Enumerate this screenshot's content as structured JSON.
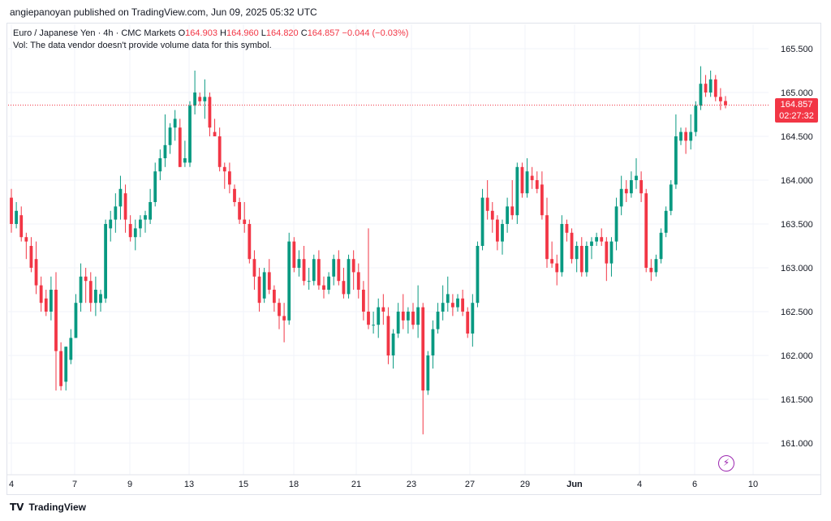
{
  "header": {
    "publisher_text": "angiepanoyan published on TradingView.com, Jun 09, 2025 05:32 UTC"
  },
  "legend": {
    "symbol": "Euro / Japanese Yen · 4h · CMC Markets",
    "o_label": "O",
    "o_val": "164.903",
    "h_label": "H",
    "h_val": "164.960",
    "l_label": "L",
    "l_val": "164.820",
    "c_label": "C",
    "c_val": "164.857",
    "change": "−0.044 (−0.03%)",
    "vol_note": "Vol: The data vendor doesn't provide volume data for this symbol."
  },
  "price_tag": {
    "price": "164.857",
    "countdown": "02:27:32"
  },
  "footer": {
    "brand": "TradingView"
  },
  "colors": {
    "up": "#089981",
    "down": "#f23645",
    "grid": "#f0f3fa",
    "last_price_line": "#f23645"
  },
  "chart_data": {
    "type": "candlestick",
    "ylim": [
      160.75,
      165.75
    ],
    "y_ticks": [
      "165.500",
      "165.000",
      "164.500",
      "164.000",
      "163.500",
      "163.000",
      "162.500",
      "162.000",
      "161.500",
      "161.000"
    ],
    "x_ticks": [
      "4",
      "7",
      "9",
      "13",
      "15",
      "18",
      "21",
      "23",
      "27",
      "29",
      "Jun",
      "4",
      "6",
      "10"
    ],
    "last_price": 164.857,
    "candles": [
      [
        163.8,
        163.9,
        163.4,
        163.5
      ],
      [
        163.5,
        163.75,
        163.45,
        163.65
      ],
      [
        163.6,
        163.7,
        163.3,
        163.35
      ],
      [
        163.35,
        163.4,
        163.1,
        163.3
      ],
      [
        163.25,
        163.35,
        162.95,
        163.0
      ],
      [
        163.1,
        163.3,
        162.7,
        162.8
      ],
      [
        162.8,
        162.9,
        162.5,
        162.6
      ],
      [
        162.65,
        162.75,
        162.45,
        162.5
      ],
      [
        162.5,
        162.9,
        162.4,
        162.75
      ],
      [
        162.75,
        162.95,
        161.6,
        162.05
      ],
      [
        162.05,
        162.15,
        161.6,
        161.65
      ],
      [
        161.7,
        162.1,
        161.6,
        162.1
      ],
      [
        161.95,
        162.3,
        161.9,
        162.2
      ],
      [
        162.2,
        162.7,
        162.2,
        162.6
      ],
      [
        162.6,
        163.05,
        162.5,
        162.9
      ],
      [
        162.9,
        163.0,
        162.6,
        162.85
      ],
      [
        162.85,
        162.95,
        162.5,
        162.6
      ],
      [
        162.6,
        162.9,
        162.45,
        162.75
      ],
      [
        162.6,
        162.75,
        162.5,
        162.7
      ],
      [
        162.65,
        163.55,
        162.6,
        163.5
      ],
      [
        163.45,
        163.65,
        163.3,
        163.55
      ],
      [
        163.55,
        163.85,
        163.4,
        163.7
      ],
      [
        163.7,
        164.05,
        163.55,
        163.9
      ],
      [
        163.85,
        163.95,
        163.4,
        163.55
      ],
      [
        163.5,
        163.6,
        163.3,
        163.35
      ],
      [
        163.35,
        163.55,
        163.2,
        163.45
      ],
      [
        163.45,
        163.6,
        163.35,
        163.55
      ],
      [
        163.55,
        163.65,
        163.4,
        163.6
      ],
      [
        163.55,
        163.9,
        163.5,
        163.75
      ],
      [
        163.75,
        164.2,
        163.7,
        164.1
      ],
      [
        164.1,
        164.35,
        164.0,
        164.25
      ],
      [
        164.25,
        164.75,
        164.15,
        164.4
      ],
      [
        164.4,
        164.65,
        164.3,
        164.6
      ],
      [
        164.6,
        164.8,
        164.45,
        164.7
      ],
      [
        164.6,
        164.7,
        164.15,
        164.15
      ],
      [
        164.2,
        164.45,
        164.15,
        164.25
      ],
      [
        164.2,
        164.9,
        164.15,
        164.85
      ],
      [
        164.85,
        165.25,
        164.75,
        165.0
      ],
      [
        164.95,
        165.0,
        164.85,
        164.9
      ],
      [
        164.9,
        165.15,
        164.7,
        164.95
      ],
      [
        164.95,
        165.0,
        164.5,
        164.6
      ],
      [
        164.55,
        164.7,
        164.5,
        164.5
      ],
      [
        164.5,
        164.6,
        164.1,
        164.15
      ],
      [
        164.15,
        164.2,
        163.9,
        164.1
      ],
      [
        164.1,
        164.2,
        163.85,
        163.95
      ],
      [
        163.9,
        163.95,
        163.7,
        163.75
      ],
      [
        163.75,
        163.8,
        163.5,
        163.55
      ],
      [
        163.55,
        163.75,
        163.4,
        163.5
      ],
      [
        163.5,
        163.55,
        163.05,
        163.1
      ],
      [
        163.1,
        163.2,
        162.75,
        162.9
      ],
      [
        162.9,
        163.0,
        162.5,
        162.6
      ],
      [
        162.65,
        163.0,
        162.6,
        162.95
      ],
      [
        162.95,
        163.1,
        162.7,
        162.75
      ],
      [
        162.75,
        162.8,
        162.5,
        162.6
      ],
      [
        162.6,
        162.65,
        162.3,
        162.45
      ],
      [
        162.45,
        162.6,
        162.15,
        162.4
      ],
      [
        162.4,
        163.4,
        162.35,
        163.3
      ],
      [
        163.3,
        163.35,
        162.95,
        163.0
      ],
      [
        163.0,
        163.2,
        162.9,
        163.1
      ],
      [
        163.1,
        163.25,
        162.8,
        162.85
      ],
      [
        162.85,
        163.0,
        162.75,
        162.85
      ],
      [
        162.85,
        163.15,
        162.8,
        163.1
      ],
      [
        163.1,
        163.2,
        162.75,
        162.8
      ],
      [
        162.8,
        162.9,
        162.65,
        162.75
      ],
      [
        162.75,
        162.95,
        162.7,
        162.9
      ],
      [
        162.9,
        163.15,
        162.8,
        163.1
      ],
      [
        163.1,
        163.2,
        162.8,
        162.85
      ],
      [
        162.85,
        163.0,
        162.65,
        162.7
      ],
      [
        162.7,
        163.15,
        162.65,
        163.1
      ],
      [
        163.1,
        163.2,
        162.75,
        162.95
      ],
      [
        162.95,
        163.05,
        162.65,
        162.75
      ],
      [
        162.75,
        162.85,
        162.4,
        162.5
      ],
      [
        162.5,
        163.45,
        162.3,
        162.35
      ],
      [
        162.35,
        162.5,
        162.25,
        162.35
      ],
      [
        162.35,
        162.65,
        162.2,
        162.55
      ],
      [
        162.55,
        162.7,
        162.35,
        162.5
      ],
      [
        162.45,
        162.55,
        161.9,
        162.0
      ],
      [
        162.0,
        162.3,
        161.85,
        162.25
      ],
      [
        162.25,
        162.6,
        162.2,
        162.5
      ],
      [
        162.5,
        162.7,
        162.3,
        162.4
      ],
      [
        162.4,
        162.55,
        162.25,
        162.5
      ],
      [
        162.5,
        162.6,
        162.3,
        162.35
      ],
      [
        162.35,
        162.8,
        162.2,
        162.55
      ],
      [
        162.55,
        162.6,
        161.1,
        161.6
      ],
      [
        161.6,
        162.05,
        161.55,
        162.0
      ],
      [
        162.0,
        162.4,
        161.85,
        162.3
      ],
      [
        162.3,
        162.6,
        162.25,
        162.5
      ],
      [
        162.5,
        162.8,
        162.4,
        162.6
      ],
      [
        162.6,
        162.9,
        162.5,
        162.7
      ],
      [
        162.6,
        162.7,
        162.45,
        162.55
      ],
      [
        162.55,
        162.7,
        162.5,
        162.65
      ],
      [
        162.65,
        162.75,
        162.45,
        162.5
      ],
      [
        162.5,
        162.55,
        162.2,
        162.25
      ],
      [
        162.25,
        162.7,
        162.1,
        162.6
      ],
      [
        162.6,
        163.3,
        162.55,
        163.25
      ],
      [
        163.25,
        163.9,
        163.2,
        163.8
      ],
      [
        163.8,
        164.0,
        163.55,
        163.65
      ],
      [
        163.65,
        163.75,
        163.4,
        163.55
      ],
      [
        163.55,
        163.6,
        163.2,
        163.3
      ],
      [
        163.3,
        163.55,
        163.15,
        163.5
      ],
      [
        163.5,
        163.8,
        163.4,
        163.7
      ],
      [
        163.7,
        164.0,
        163.55,
        163.6
      ],
      [
        163.6,
        164.2,
        163.5,
        164.15
      ],
      [
        164.15,
        164.2,
        163.8,
        163.85
      ],
      [
        163.85,
        164.25,
        163.8,
        164.1
      ],
      [
        164.05,
        164.15,
        163.9,
        164.0
      ],
      [
        164.0,
        164.1,
        163.85,
        163.9
      ],
      [
        163.95,
        164.1,
        163.55,
        163.6
      ],
      [
        163.6,
        163.8,
        163.0,
        163.1
      ],
      [
        163.1,
        163.3,
        163.0,
        163.05
      ],
      [
        163.05,
        163.15,
        162.8,
        162.95
      ],
      [
        162.95,
        163.6,
        162.9,
        163.5
      ],
      [
        163.5,
        163.55,
        163.3,
        163.4
      ],
      [
        163.4,
        163.45,
        163.05,
        163.1
      ],
      [
        163.1,
        163.3,
        162.95,
        163.25
      ],
      [
        163.25,
        163.35,
        162.9,
        162.95
      ],
      [
        162.95,
        163.3,
        162.9,
        163.25
      ],
      [
        163.25,
        163.35,
        163.1,
        163.3
      ],
      [
        163.3,
        163.4,
        163.25,
        163.35
      ],
      [
        163.35,
        163.45,
        163.25,
        163.3
      ],
      [
        163.3,
        163.35,
        162.85,
        163.05
      ],
      [
        163.05,
        163.35,
        162.9,
        163.3
      ],
      [
        163.3,
        163.8,
        163.2,
        163.7
      ],
      [
        163.7,
        164.05,
        163.6,
        163.9
      ],
      [
        163.9,
        164.0,
        163.75,
        163.85
      ],
      [
        163.85,
        164.1,
        163.8,
        164.0
      ],
      [
        164.0,
        164.25,
        163.9,
        164.05
      ],
      [
        164.0,
        164.1,
        163.75,
        163.85
      ],
      [
        163.85,
        163.9,
        162.95,
        163.0
      ],
      [
        163.0,
        163.1,
        162.85,
        162.95
      ],
      [
        162.95,
        163.15,
        162.9,
        163.1
      ],
      [
        163.1,
        163.45,
        163.05,
        163.4
      ],
      [
        163.4,
        163.7,
        163.35,
        163.65
      ],
      [
        163.65,
        164.0,
        163.6,
        163.95
      ],
      [
        163.95,
        164.75,
        163.9,
        164.5
      ],
      [
        164.45,
        164.6,
        164.4,
        164.55
      ],
      [
        164.55,
        164.6,
        164.3,
        164.45
      ],
      [
        164.45,
        164.75,
        164.35,
        164.55
      ],
      [
        164.55,
        164.9,
        164.5,
        164.85
      ],
      [
        164.85,
        165.3,
        164.8,
        165.1
      ],
      [
        165.1,
        165.2,
        164.95,
        165.0
      ],
      [
        165.0,
        165.25,
        164.95,
        165.15
      ],
      [
        165.15,
        165.2,
        164.9,
        164.95
      ],
      [
        164.95,
        165.05,
        164.8,
        164.9
      ],
      [
        164.903,
        164.96,
        164.82,
        164.857
      ]
    ]
  }
}
